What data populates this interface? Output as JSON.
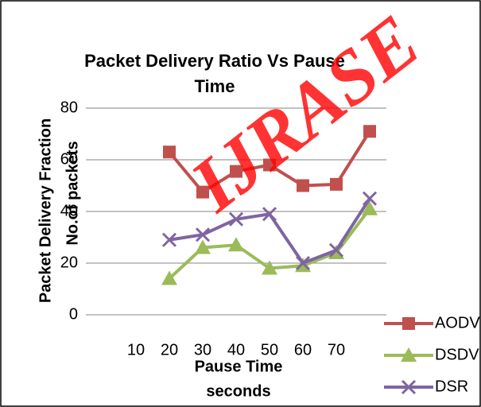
{
  "chart_data": {
    "type": "line",
    "title": [
      "Packet Delivery Ratio Vs Pause",
      "Time"
    ],
    "ylabel": [
      "Packet Delivery Fraction",
      "No.of packets"
    ],
    "xlabel": [
      "Pause Time",
      "seconds"
    ],
    "watermark": "IJRASE",
    "categories": [
      null,
      "10",
      "20",
      "30",
      "40",
      "50",
      "60",
      "70",
      null
    ],
    "series": [
      {
        "name": "AODV",
        "color": "#c0504d",
        "marker": "square",
        "values": [
          null,
          null,
          63,
          47.5,
          55.5,
          58,
          50,
          50.5,
          71
        ]
      },
      {
        "name": "DSDV",
        "color": "#9bbb59",
        "marker": "triangle",
        "values": [
          null,
          null,
          14,
          26,
          27,
          18,
          19,
          24,
          41
        ]
      },
      {
        "name": "DSR",
        "color": "#8064a2",
        "marker": "x",
        "values": [
          null,
          null,
          29,
          31,
          37,
          39,
          20,
          25,
          45
        ]
      }
    ],
    "ylim": [
      0,
      80
    ],
    "yticks": [
      0,
      20,
      40,
      60,
      80
    ],
    "grid": true,
    "legend": "right"
  }
}
